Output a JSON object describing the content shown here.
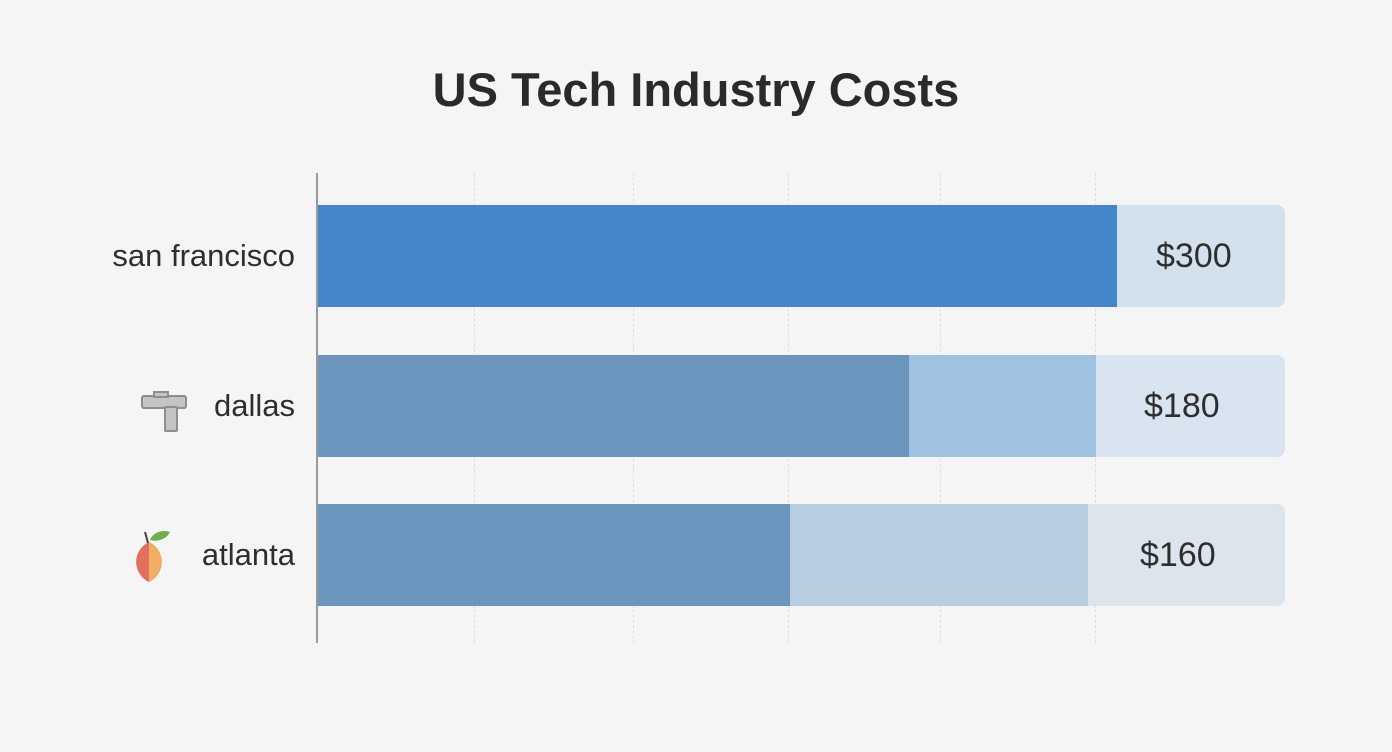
{
  "chart_data": {
    "type": "bar",
    "orientation": "horizontal",
    "title": "US Tech Industry Costs",
    "categories": [
      "san francisco",
      "dallas",
      "atlanta"
    ],
    "values": [
      300,
      180,
      160
    ],
    "value_labels": [
      "$300",
      "$180",
      "$160"
    ],
    "category_icons": [
      "",
      "hammer-icon",
      "peach-icon"
    ],
    "grid": true,
    "colors": {
      "primary": "#4487c8",
      "secondary": "#6b97bf",
      "tertiary_dallas": "#9fc2e3",
      "tertiary_atlanta": "#b8cfe2",
      "track": "#d3e1ec"
    }
  }
}
